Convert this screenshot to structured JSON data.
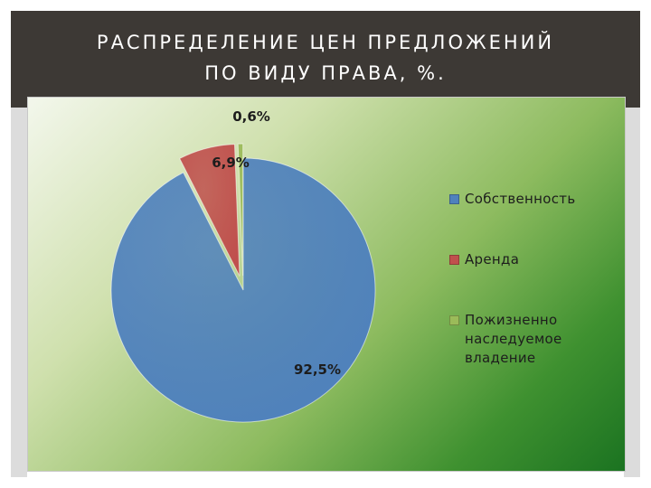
{
  "slide": {
    "title_line1": "РАСПРЕДЕЛЕНИЕ ЦЕН ПРЕДЛОЖЕНИЙ",
    "title_line2": "ПО ВИДУ ПРАВА, %."
  },
  "chart_data": {
    "type": "pie",
    "title": "",
    "categories": [
      "Собственность",
      "Аренда",
      "Пожизненно наследуемое владение"
    ],
    "values": [
      92.5,
      6.9,
      0.6
    ],
    "data_labels": [
      "92,5%",
      "6,9%",
      "0,6%"
    ],
    "colors": [
      "#4f81bd",
      "#c0504d",
      "#9bbb59"
    ],
    "legend_position": "right",
    "exploded": [
      false,
      true,
      true
    ]
  },
  "legend": {
    "items": [
      {
        "label_lines": [
          "Собственность"
        ],
        "color": "#4f81bd"
      },
      {
        "label_lines": [
          "Аренда"
        ],
        "color": "#c0504d"
      },
      {
        "label_lines": [
          "Пожизненно",
          "наследуемое",
          "владение"
        ],
        "color": "#9bbb59"
      }
    ]
  }
}
